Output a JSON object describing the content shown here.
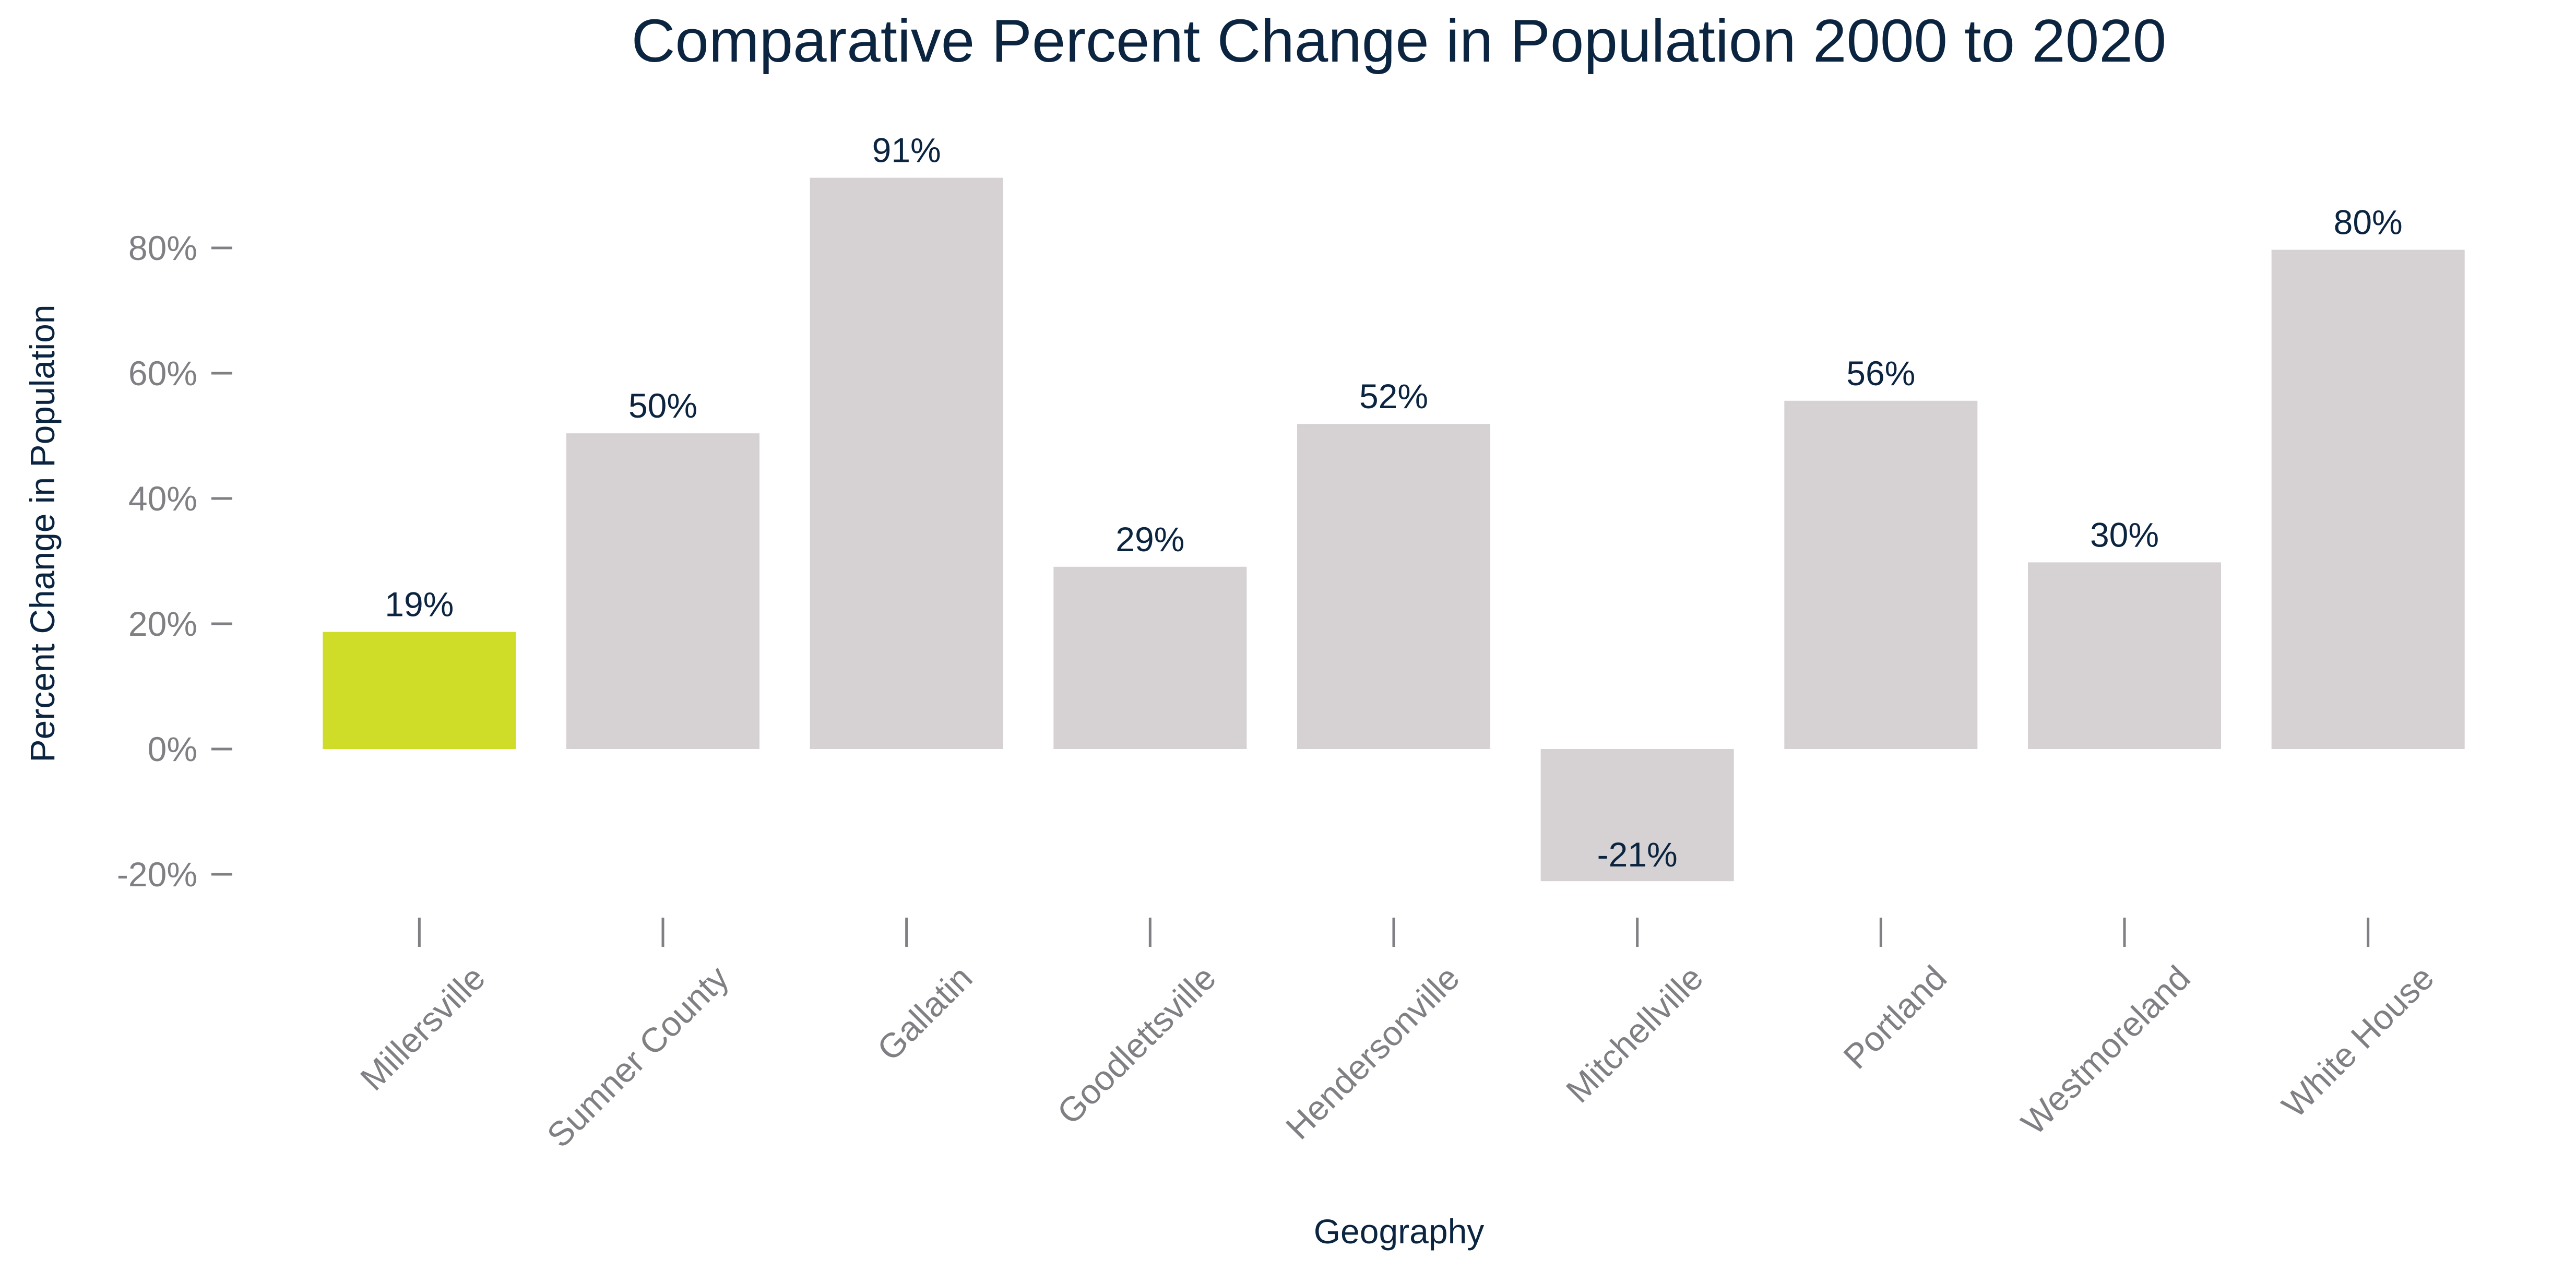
{
  "chart_data": {
    "type": "bar",
    "title": "Comparative Percent Change in Population 2000 to 2020",
    "xlabel": "Geography",
    "ylabel": "Percent Change in Population",
    "categories": [
      "Millersville",
      "Sumner County",
      "Gallatin",
      "Goodlettsville",
      "Hendersonville",
      "Mitchellville",
      "Portland",
      "Westmoreland",
      "White House"
    ],
    "values": [
      18.7,
      50.4,
      91.2,
      29.1,
      51.9,
      -21.1,
      55.6,
      29.8,
      79.7
    ],
    "data_labels": [
      "19%",
      "50%",
      "91%",
      "29%",
      "52%",
      "-21%",
      "56%",
      "30%",
      "80%"
    ],
    "y_ticks": [
      -20,
      0,
      20,
      40,
      60,
      80
    ],
    "y_tick_labels": [
      "-20%",
      "0%",
      "20%",
      "40%",
      "60%",
      "80%"
    ],
    "ylim": [
      -28,
      96
    ],
    "grid": false,
    "legend": "none",
    "colors": {
      "highlight": "#cfdd28",
      "bar": "#d6d1d3",
      "title": "#0b2440",
      "tick_label": "#7f7f84"
    },
    "highlight_category": "Millersville"
  }
}
